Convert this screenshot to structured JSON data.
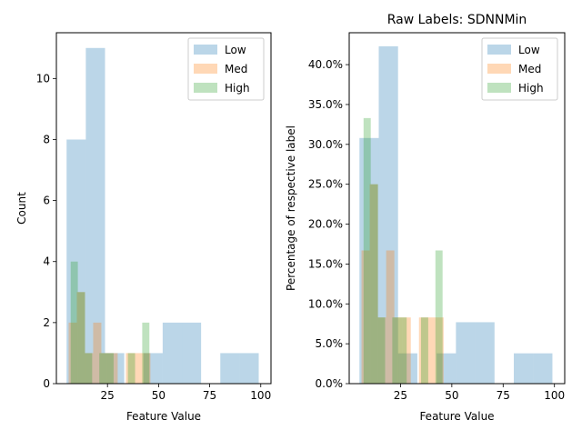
{
  "chart_data": [
    {
      "type": "histogram",
      "title": "",
      "xlabel": "Feature Value",
      "ylabel": "Count",
      "xlim": [
        0,
        105
      ],
      "ylim": [
        0,
        11.5
      ],
      "xticks": [
        25,
        50,
        75,
        100
      ],
      "yticks": [
        0,
        2,
        4,
        6,
        8,
        10
      ],
      "ytick_format": "int",
      "legend_position": "upper right",
      "series": [
        {
          "name": "Low",
          "color": "#1f77b4",
          "bins": [
            {
              "x0": 5,
              "x1": 14.4,
              "y": 8
            },
            {
              "x0": 14.4,
              "x1": 23.8,
              "y": 11
            },
            {
              "x0": 23.8,
              "x1": 33.2,
              "y": 1
            },
            {
              "x0": 33.2,
              "x1": 42.6,
              "y": 0
            },
            {
              "x0": 42.6,
              "x1": 52,
              "y": 1
            },
            {
              "x0": 52,
              "x1": 61.4,
              "y": 2
            },
            {
              "x0": 61.4,
              "x1": 70.8,
              "y": 2
            },
            {
              "x0": 70.8,
              "x1": 80.2,
              "y": 0
            },
            {
              "x0": 80.2,
              "x1": 89.6,
              "y": 1
            },
            {
              "x0": 89.6,
              "x1": 99,
              "y": 1
            }
          ]
        },
        {
          "name": "Med",
          "color": "#ff7f0e",
          "bins": [
            {
              "x0": 6,
              "x1": 10,
              "y": 2
            },
            {
              "x0": 10,
              "x1": 14,
              "y": 3
            },
            {
              "x0": 14,
              "x1": 18,
              "y": 1
            },
            {
              "x0": 18,
              "x1": 22,
              "y": 2
            },
            {
              "x0": 22,
              "x1": 26,
              "y": 1
            },
            {
              "x0": 26,
              "x1": 30,
              "y": 1
            },
            {
              "x0": 34,
              "x1": 38,
              "y": 1
            },
            {
              "x0": 38,
              "x1": 42,
              "y": 1
            },
            {
              "x0": 42,
              "x1": 46,
              "y": 1
            }
          ]
        },
        {
          "name": "High",
          "color": "#2ca02c",
          "bins": [
            {
              "x0": 7,
              "x1": 10.5,
              "y": 4
            },
            {
              "x0": 10.5,
              "x1": 14,
              "y": 3
            },
            {
              "x0": 14,
              "x1": 17.5,
              "y": 1
            },
            {
              "x0": 21,
              "x1": 24.5,
              "y": 1
            },
            {
              "x0": 24.5,
              "x1": 28,
              "y": 1
            },
            {
              "x0": 35,
              "x1": 38.5,
              "y": 1
            },
            {
              "x0": 42,
              "x1": 45.5,
              "y": 2
            }
          ]
        }
      ]
    },
    {
      "type": "histogram",
      "title": "Raw Labels: SDNNMin",
      "xlabel": "Feature Value",
      "ylabel": "Percentage of respective label",
      "xlim": [
        0,
        105
      ],
      "ylim": [
        0,
        0.44
      ],
      "xticks": [
        25,
        50,
        75,
        100
      ],
      "yticks": [
        0,
        0.05,
        0.1,
        0.15,
        0.2,
        0.25,
        0.3,
        0.35,
        0.4
      ],
      "ytick_format": "percent",
      "legend_position": "upper right",
      "series": [
        {
          "name": "Low",
          "color": "#1f77b4",
          "bins": [
            {
              "x0": 5,
              "x1": 14.4,
              "y": 0.308
            },
            {
              "x0": 14.4,
              "x1": 23.8,
              "y": 0.423
            },
            {
              "x0": 23.8,
              "x1": 33.2,
              "y": 0.038
            },
            {
              "x0": 33.2,
              "x1": 42.6,
              "y": 0
            },
            {
              "x0": 42.6,
              "x1": 52,
              "y": 0.038
            },
            {
              "x0": 52,
              "x1": 61.4,
              "y": 0.077
            },
            {
              "x0": 61.4,
              "x1": 70.8,
              "y": 0.077
            },
            {
              "x0": 70.8,
              "x1": 80.2,
              "y": 0
            },
            {
              "x0": 80.2,
              "x1": 89.6,
              "y": 0.038
            },
            {
              "x0": 89.6,
              "x1": 99,
              "y": 0.038
            }
          ]
        },
        {
          "name": "Med",
          "color": "#ff7f0e",
          "bins": [
            {
              "x0": 6,
              "x1": 10,
              "y": 0.167
            },
            {
              "x0": 10,
              "x1": 14,
              "y": 0.25
            },
            {
              "x0": 14,
              "x1": 18,
              "y": 0.083
            },
            {
              "x0": 18,
              "x1": 22,
              "y": 0.167
            },
            {
              "x0": 22,
              "x1": 26,
              "y": 0.083
            },
            {
              "x0": 26,
              "x1": 30,
              "y": 0.083
            },
            {
              "x0": 34,
              "x1": 38,
              "y": 0.083
            },
            {
              "x0": 38,
              "x1": 42,
              "y": 0.083
            },
            {
              "x0": 42,
              "x1": 46,
              "y": 0.083
            }
          ]
        },
        {
          "name": "High",
          "color": "#2ca02c",
          "bins": [
            {
              "x0": 7,
              "x1": 10.5,
              "y": 0.333
            },
            {
              "x0": 10.5,
              "x1": 14,
              "y": 0.25
            },
            {
              "x0": 14,
              "x1": 17.5,
              "y": 0.083
            },
            {
              "x0": 21,
              "x1": 24.5,
              "y": 0.083
            },
            {
              "x0": 24.5,
              "x1": 28,
              "y": 0.083
            },
            {
              "x0": 35,
              "x1": 38.5,
              "y": 0.083
            },
            {
              "x0": 42,
              "x1": 45.5,
              "y": 0.167
            }
          ]
        }
      ]
    }
  ]
}
